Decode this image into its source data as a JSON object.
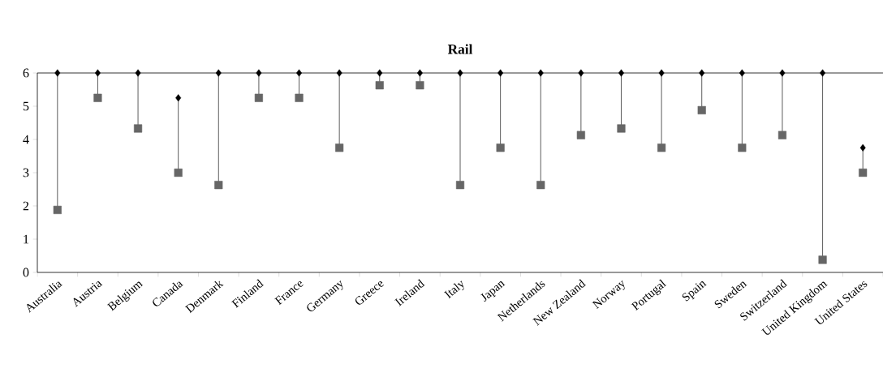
{
  "chart_data": {
    "type": "scatter",
    "title": "Rail",
    "categories": [
      "Australia",
      "Austria",
      "Belgium",
      "Canada",
      "Denmark",
      "Finland",
      "France",
      "Germany",
      "Greece",
      "Ireland",
      "Italy",
      "Japan",
      "Netherlands",
      "New Zealand",
      "Norway",
      "Portugal",
      "Spain",
      "Sweden",
      "Switzerland",
      "United Kingdom",
      "United States"
    ],
    "series": [
      {
        "color": "#000000",
        "marker": "diamond",
        "values": [
          6,
          6,
          6,
          5.25,
          6,
          6,
          6,
          6,
          6,
          6,
          6,
          6,
          6,
          6,
          6,
          6,
          6,
          6,
          6,
          6,
          3.75
        ]
      },
      {
        "color": "#666666",
        "marker": "square",
        "values": [
          1.88,
          5.25,
          4.33,
          3.0,
          2.63,
          5.25,
          5.25,
          3.75,
          5.63,
          5.63,
          2.63,
          3.75,
          2.63,
          4.13,
          4.33,
          3.75,
          4.88,
          3.75,
          4.13,
          0.38,
          3.0
        ]
      }
    ],
    "ylim": [
      0,
      6
    ],
    "yticks": [
      0,
      1,
      2,
      3,
      4,
      5,
      6
    ],
    "ref_lines": [
      {
        "axis": "y",
        "value": 6,
        "color": "#000000"
      }
    ]
  }
}
